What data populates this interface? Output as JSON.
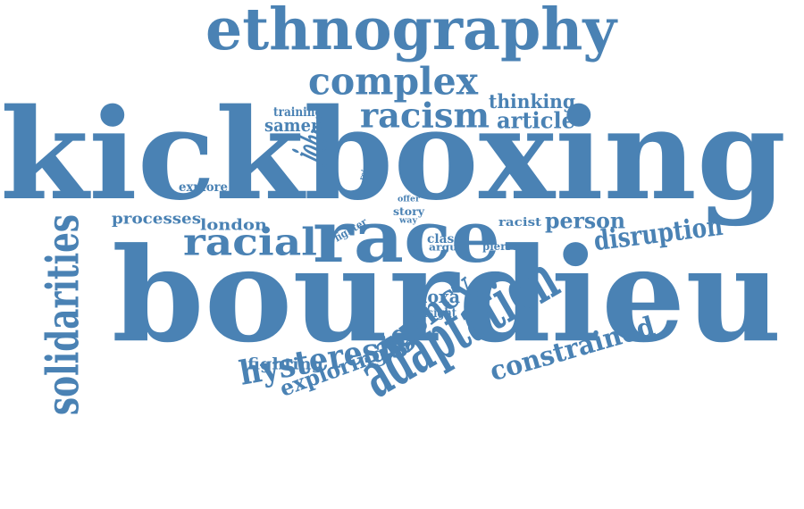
{
  "color": "#4a82b4",
  "words": [
    "kickboxing",
    "bourdieu",
    "ethnography",
    "race",
    "adaptation",
    "complex",
    "racism",
    "racial",
    "agency",
    "hysteresis",
    "solidarities",
    "constrained",
    "disruption",
    "person",
    "article",
    "thinking",
    "exploring",
    "john",
    "samen",
    "training",
    "london",
    "processes",
    "explore",
    "fighting",
    "doxa",
    "insight",
    "class",
    "argue",
    "racist",
    "pierre",
    "story",
    "offer",
    "way",
    "reject",
    "fighter"
  ]
}
